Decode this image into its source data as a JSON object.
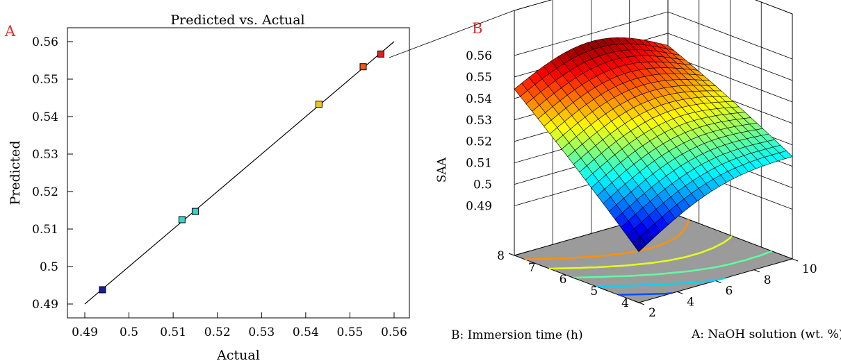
{
  "panels": {
    "a_letter": "A",
    "b_letter": "B"
  },
  "colors": {
    "panel_label": "#e8262a",
    "axis": "#000000",
    "floor": "#9b9b9b"
  },
  "chart_data": [
    {
      "type": "scatter",
      "title": "Predicted vs. Actual",
      "xlabel": "Actual",
      "ylabel": "Predicted",
      "xlim": [
        0.49,
        0.56
      ],
      "ylim": [
        0.49,
        0.56
      ],
      "xticks": [
        0.49,
        0.5,
        0.51,
        0.52,
        0.53,
        0.54,
        0.55,
        0.56
      ],
      "yticks": [
        0.49,
        0.5,
        0.51,
        0.52,
        0.53,
        0.54,
        0.55,
        0.56
      ],
      "tick_labels": [
        "0.49",
        "0.5",
        "0.51",
        "0.52",
        "0.53",
        "0.54",
        "0.55",
        "0.56"
      ],
      "reference_line": [
        [
          0.49,
          0.49
        ],
        [
          0.56,
          0.56
        ]
      ],
      "points": [
        {
          "x": 0.494,
          "y": 0.4938,
          "color": "#1a1a9e"
        },
        {
          "x": 0.512,
          "y": 0.5125,
          "color": "#3ad0c8"
        },
        {
          "x": 0.515,
          "y": 0.5147,
          "color": "#3ad0c8"
        },
        {
          "x": 0.543,
          "y": 0.5433,
          "color": "#f3c11b"
        },
        {
          "x": 0.553,
          "y": 0.5533,
          "color": "#ee5a1a"
        },
        {
          "x": 0.557,
          "y": 0.5567,
          "color": "#e0201b"
        }
      ],
      "grid": false
    },
    {
      "type": "surface3d",
      "xlabel": "A: NaOH solution (wt. %)",
      "ylabel": "B: Immersion time (h)",
      "zlabel": "SAA",
      "xlim": [
        2,
        10
      ],
      "ylim": [
        4,
        8
      ],
      "zlim": [
        0.485,
        0.56
      ],
      "xticks": [
        "2",
        "4",
        "6",
        "8",
        "10"
      ],
      "yticks": [
        "4",
        "5",
        "6",
        "7",
        "8"
      ],
      "zticks": [
        "0.49",
        "0.5",
        "0.51",
        "0.52",
        "0.53",
        "0.54",
        "0.55",
        "0.56"
      ],
      "corners": [
        {
          "x": 2,
          "y": 4,
          "z": 0.492
        },
        {
          "x": 10,
          "y": 4,
          "z": 0.516
        },
        {
          "x": 2,
          "y": 8,
          "z": 0.545
        },
        {
          "x": 10,
          "y": 8,
          "z": 0.545
        }
      ],
      "colormap": "jet",
      "grid": true
    }
  ]
}
